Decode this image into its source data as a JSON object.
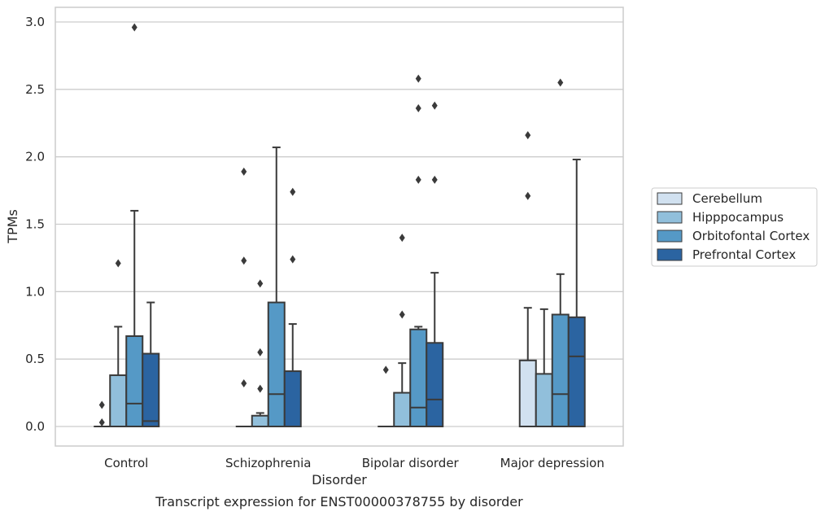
{
  "chart_data": {
    "type": "box",
    "title": "",
    "caption": "Transcript expression for ENST00000378755 by disorder",
    "xlabel": "Disorder",
    "ylabel": "TPMs",
    "ylim": [
      -0.14,
      3.11
    ],
    "yticks": [
      0.0,
      0.5,
      1.0,
      1.5,
      2.0,
      2.5,
      3.0
    ],
    "ytick_labels": [
      "0.0",
      "0.5",
      "1.0",
      "1.5",
      "2.0",
      "2.5",
      "3.0"
    ],
    "grid": "horizontal",
    "legend_position": "right, outside plot",
    "categories": [
      "Control",
      "Schizophrenia",
      "Bipolar disorder",
      "Major depression"
    ],
    "series": [
      {
        "name": "Cerebellum",
        "color": "#d1e1f0",
        "boxes": [
          {
            "q1": 0.0,
            "median": 0.0,
            "q3": 0.0,
            "whisker_low": 0.0,
            "whisker_high": 0.0,
            "outliers": [
              0.03,
              0.16
            ]
          },
          {
            "q1": 0.0,
            "median": 0.0,
            "q3": 0.0,
            "whisker_low": 0.0,
            "whisker_high": 0.0,
            "outliers": [
              0.32,
              1.23,
              1.89
            ]
          },
          {
            "q1": 0.0,
            "median": 0.0,
            "q3": 0.0,
            "whisker_low": 0.0,
            "whisker_high": 0.0,
            "outliers": [
              0.42
            ]
          },
          {
            "q1": 0.0,
            "median": 0.0,
            "q3": 0.49,
            "whisker_low": 0.0,
            "whisker_high": 0.88,
            "outliers": [
              1.71,
              2.16
            ]
          }
        ]
      },
      {
        "name": "Hipppocampus",
        "color": "#91bfdb",
        "boxes": [
          {
            "q1": 0.0,
            "median": 0.0,
            "q3": 0.38,
            "whisker_low": 0.0,
            "whisker_high": 0.74,
            "outliers": [
              1.21
            ]
          },
          {
            "q1": 0.0,
            "median": 0.0,
            "q3": 0.08,
            "whisker_low": 0.0,
            "whisker_high": 0.1,
            "outliers": [
              0.28,
              0.55,
              1.06
            ]
          },
          {
            "q1": 0.0,
            "median": 0.0,
            "q3": 0.25,
            "whisker_low": 0.0,
            "whisker_high": 0.47,
            "outliers": [
              0.83,
              1.4
            ]
          },
          {
            "q1": 0.0,
            "median": 0.0,
            "q3": 0.39,
            "whisker_low": 0.0,
            "whisker_high": 0.87,
            "outliers": []
          }
        ]
      },
      {
        "name": "Orbitofontal Cortex",
        "color": "#5599c6",
        "boxes": [
          {
            "q1": 0.0,
            "median": 0.17,
            "q3": 0.67,
            "whisker_low": 0.0,
            "whisker_high": 1.6,
            "outliers": [
              2.96
            ]
          },
          {
            "q1": 0.0,
            "median": 0.24,
            "q3": 0.92,
            "whisker_low": 0.0,
            "whisker_high": 2.07,
            "outliers": []
          },
          {
            "q1": 0.0,
            "median": 0.14,
            "q3": 0.72,
            "whisker_low": 0.0,
            "whisker_high": 0.74,
            "outliers": [
              1.83,
              2.36,
              2.58
            ]
          },
          {
            "q1": 0.0,
            "median": 0.24,
            "q3": 0.83,
            "whisker_low": 0.0,
            "whisker_high": 1.13,
            "outliers": [
              2.55
            ]
          }
        ]
      },
      {
        "name": "Prefrontal Cortex",
        "color": "#2b64a1",
        "boxes": [
          {
            "q1": 0.0,
            "median": 0.04,
            "q3": 0.54,
            "whisker_low": 0.0,
            "whisker_high": 0.92,
            "outliers": []
          },
          {
            "q1": 0.0,
            "median": 0.0,
            "q3": 0.41,
            "whisker_low": 0.0,
            "whisker_high": 0.76,
            "outliers": [
              1.24,
              1.74
            ]
          },
          {
            "q1": 0.0,
            "median": 0.2,
            "q3": 0.62,
            "whisker_low": 0.0,
            "whisker_high": 1.14,
            "outliers": [
              1.83,
              2.38
            ]
          },
          {
            "q1": 0.0,
            "median": 0.52,
            "q3": 0.81,
            "whisker_low": 0.0,
            "whisker_high": 1.98,
            "outliers": []
          }
        ]
      }
    ]
  }
}
